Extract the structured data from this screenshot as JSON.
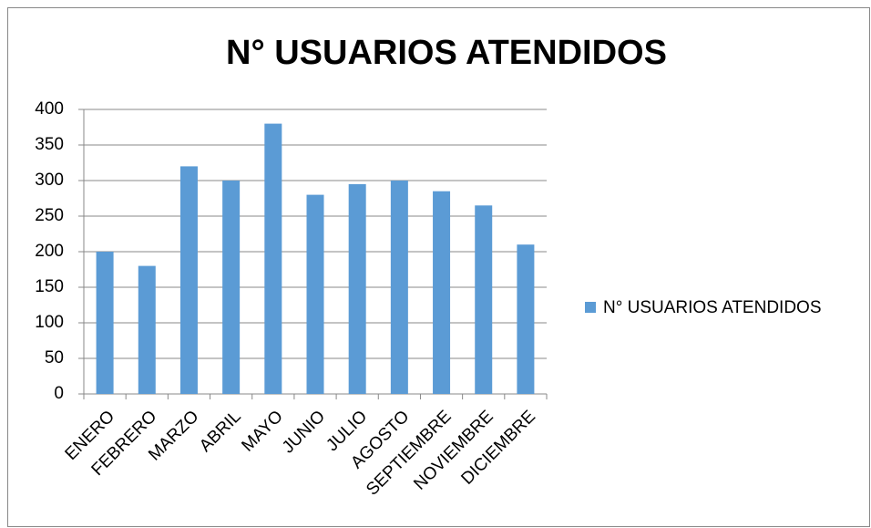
{
  "chart_data": {
    "type": "bar",
    "title": "N° USUARIOS ATENDIDOS",
    "categories": [
      "ENERO",
      "FEBRERO",
      "MARZO",
      "ABRIL",
      "MAYO",
      "JUNIO",
      "JULIO",
      "AGOSTO",
      "SEPTIEMBRE",
      "NOVIEMBRE",
      "DICIEMBRE"
    ],
    "series": [
      {
        "name": "N° USUARIOS ATENDIDOS",
        "color": "#5b9bd5",
        "values": [
          200,
          180,
          320,
          300,
          380,
          280,
          295,
          300,
          285,
          265,
          210
        ]
      }
    ],
    "ylim": [
      0,
      400
    ],
    "yticks": [
      0,
      50,
      100,
      150,
      200,
      250,
      300,
      350,
      400
    ],
    "grid": true,
    "legend": "right"
  }
}
